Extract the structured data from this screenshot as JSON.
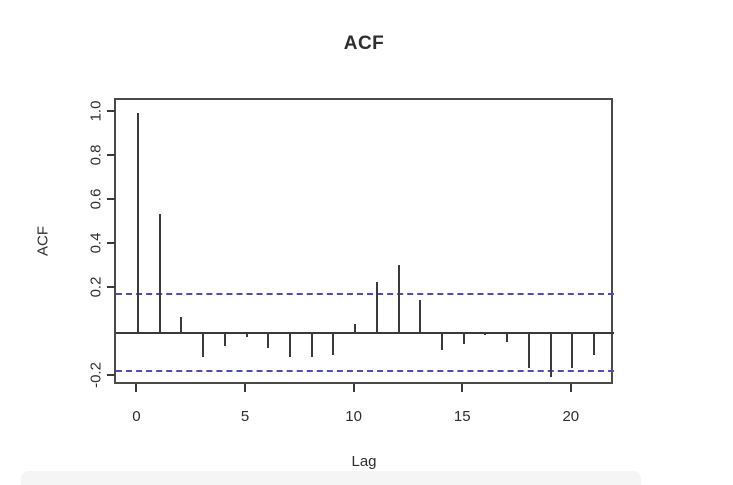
{
  "window": {
    "background_color": "#ffffff",
    "bottom_strip_color": "#f5f5f6"
  },
  "chart_data": {
    "type": "bar",
    "title": "ACF",
    "xlabel": "Lag",
    "ylabel": "ACF",
    "x": [
      0,
      1,
      2,
      3,
      4,
      5,
      6,
      7,
      8,
      9,
      10,
      11,
      12,
      13,
      14,
      15,
      16,
      17,
      18,
      19,
      20,
      21
    ],
    "values": [
      1.0,
      0.54,
      0.07,
      -0.11,
      -0.06,
      -0.02,
      -0.07,
      -0.11,
      -0.11,
      -0.1,
      0.04,
      0.23,
      0.31,
      0.15,
      -0.08,
      -0.05,
      -0.01,
      -0.04,
      -0.16,
      -0.2,
      -0.16,
      -0.1
    ],
    "conf_upper": 0.175,
    "conf_lower": -0.175,
    "conf_line_style": "dashed",
    "conf_line_color": "#4d4db4",
    "bar_color": "#3a3a3a",
    "frame_color": "#4a4a4a",
    "text_color": "#2e2e2e",
    "xlim": [
      -1.01,
      21.92
    ],
    "ylim": [
      -0.24,
      1.06
    ],
    "x_ticks": [
      0,
      5,
      10,
      15,
      20
    ],
    "x_tick_labels": [
      "0",
      "5",
      "10",
      "15",
      "20"
    ],
    "y_ticks": [
      1.0,
      0.8,
      0.6,
      0.4,
      0.2,
      -0.2
    ],
    "y_tick_labels": [
      "1.0",
      "0.8",
      "0.6",
      "0.4",
      "0.2",
      "-0.2"
    ],
    "grid": false,
    "legend": null,
    "zero_line": true
  }
}
